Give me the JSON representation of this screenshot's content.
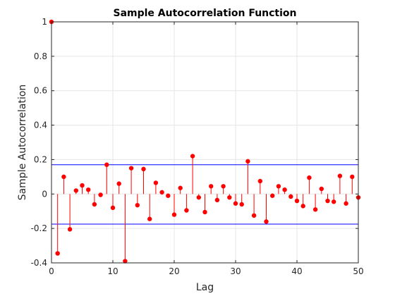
{
  "chart_data": {
    "type": "stem",
    "title": "Sample Autocorrelation Function",
    "xlabel": "Lag",
    "ylabel": "Sample Autocorrelation",
    "xlim": [
      0,
      50
    ],
    "ylim": [
      -0.4,
      1
    ],
    "xticks": [
      0,
      10,
      20,
      30,
      40,
      50
    ],
    "yticks": [
      -0.4,
      -0.2,
      0,
      0.2,
      0.4,
      0.6,
      0.8,
      1
    ],
    "grid": true,
    "confidence_bounds": [
      0.17,
      -0.175
    ],
    "colors": {
      "stem": "#ff0000",
      "bounds": "#0000ff",
      "grid": "#e6e6e6",
      "axis": "#262626"
    },
    "series": [
      {
        "x": [
          0,
          1,
          2,
          3,
          4,
          5,
          6,
          7,
          8,
          9,
          10,
          11,
          12,
          13,
          14,
          15,
          16,
          17,
          18,
          19,
          20,
          21,
          22,
          23,
          24,
          25,
          26,
          27,
          28,
          29,
          30,
          31,
          32,
          33,
          34,
          35,
          36,
          37,
          38,
          39,
          40,
          41,
          42,
          43,
          44,
          45,
          46,
          47,
          48,
          49,
          50
        ],
        "values": [
          1.0,
          -0.345,
          0.1,
          -0.205,
          0.02,
          0.05,
          0.025,
          -0.06,
          -0.005,
          0.17,
          -0.08,
          0.06,
          -0.39,
          0.15,
          -0.065,
          0.145,
          -0.145,
          0.065,
          0.01,
          -0.01,
          -0.12,
          0.035,
          -0.095,
          0.22,
          -0.02,
          -0.105,
          0.045,
          -0.035,
          0.045,
          -0.02,
          -0.055,
          -0.06,
          0.19,
          -0.125,
          0.075,
          -0.16,
          -0.01,
          0.045,
          0.025,
          -0.015,
          -0.04,
          -0.07,
          0.095,
          -0.09,
          0.03,
          -0.04,
          -0.045,
          0.105,
          -0.055,
          0.1,
          -0.02
        ]
      }
    ]
  }
}
